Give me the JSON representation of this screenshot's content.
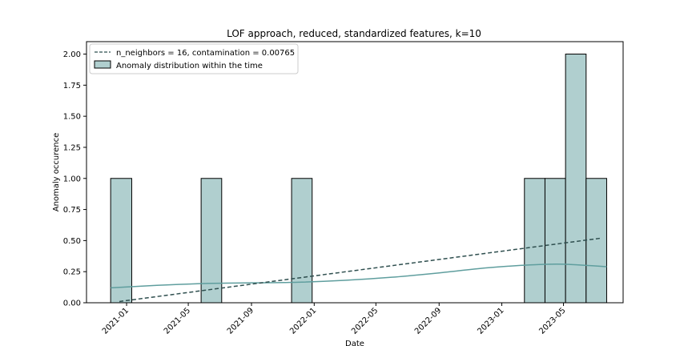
{
  "chart_data": {
    "type": "bar",
    "title": "LOF approach, reduced, standardized features, k=10",
    "xlabel": "Date",
    "ylabel": "Anomaly occurence",
    "xlim": [
      "2020-10-15",
      "2023-08-25"
    ],
    "ylim": [
      0,
      2.1
    ],
    "x_ticks": [
      "2021-01",
      "2021-05",
      "2021-09",
      "2022-01",
      "2022-05",
      "2022-09",
      "2023-01",
      "2023-05"
    ],
    "y_ticks": [
      "0.00",
      "0.25",
      "0.50",
      "0.75",
      "1.00",
      "1.25",
      "1.50",
      "1.75",
      "2.00"
    ],
    "grid": false,
    "legend_position": "top-left",
    "legend": [
      "n_neighbors = 16, contamination = 0.00765",
      "Anomaly distribution within the time"
    ],
    "bars": [
      {
        "start": "2020-12-01",
        "end": "2021-01-11",
        "value": 1
      },
      {
        "start": "2021-05-26",
        "end": "2021-07-05",
        "value": 1
      },
      {
        "start": "2021-11-18",
        "end": "2021-12-28",
        "value": 1
      },
      {
        "start": "2023-02-14",
        "end": "2023-03-26",
        "value": 1
      },
      {
        "start": "2023-03-26",
        "end": "2023-05-05",
        "value": 1
      },
      {
        "start": "2023-05-05",
        "end": "2023-06-14",
        "value": 2
      },
      {
        "start": "2023-06-14",
        "end": "2023-07-24",
        "value": 1
      }
    ],
    "trend_line": {
      "name": "n_neighbors = 16, contamination = 0.00765",
      "points": [
        {
          "x": "2020-12-18",
          "y": 0.01
        },
        {
          "x": "2023-07-14",
          "y": 0.52
        }
      ]
    },
    "kde_curve": {
      "points": [
        {
          "x": "2020-12-01",
          "y": 0.12
        },
        {
          "x": "2021-03-01",
          "y": 0.14
        },
        {
          "x": "2021-06-01",
          "y": 0.155
        },
        {
          "x": "2021-09-01",
          "y": 0.16
        },
        {
          "x": "2021-12-01",
          "y": 0.165
        },
        {
          "x": "2022-03-01",
          "y": 0.18
        },
        {
          "x": "2022-06-01",
          "y": 0.205
        },
        {
          "x": "2022-09-01",
          "y": 0.24
        },
        {
          "x": "2022-12-01",
          "y": 0.28
        },
        {
          "x": "2023-03-01",
          "y": 0.305
        },
        {
          "x": "2023-05-01",
          "y": 0.31
        },
        {
          "x": "2023-07-24",
          "y": 0.29
        }
      ]
    },
    "colors": {
      "bar_fill": "#b0cfcf",
      "bar_edge": "#000000",
      "trend": "#2f4f4f",
      "kde": "#5f9e9e",
      "axis": "#000000"
    }
  }
}
